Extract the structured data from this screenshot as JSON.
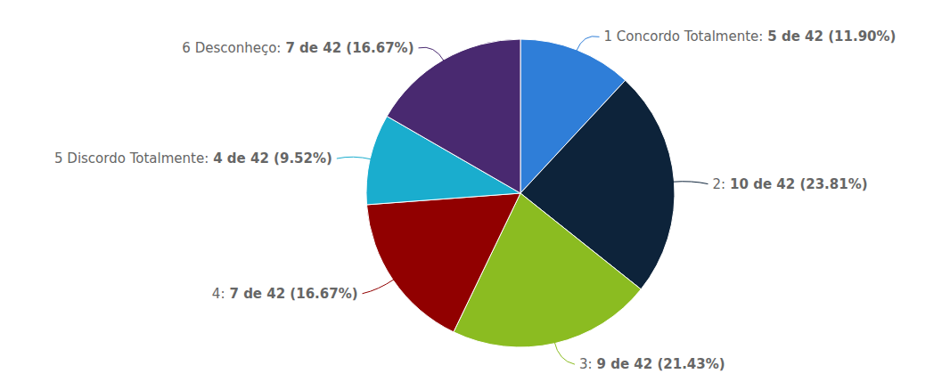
{
  "chart_data": {
    "type": "pie",
    "categories": [
      "1 Concordo Totalmente:",
      "2:",
      "3:",
      "4:",
      "5 Discordo Totalmente:",
      "6 Desconheço:"
    ],
    "values": [
      5,
      10,
      9,
      7,
      4,
      7
    ],
    "value_labels": [
      "5 de 42 (11.90%)",
      "10 de 42 (23.81%)",
      "9 de 42 (21.43%)",
      "7 de 42 (16.67%)",
      "4 de 42 (9.52%)",
      "7 de 42 (16.67%)"
    ],
    "colors": [
      "#2f7ed8",
      "#0d233a",
      "#8bbc21",
      "#910000",
      "#1aadce",
      "#492970"
    ],
    "data_labels": true
  }
}
